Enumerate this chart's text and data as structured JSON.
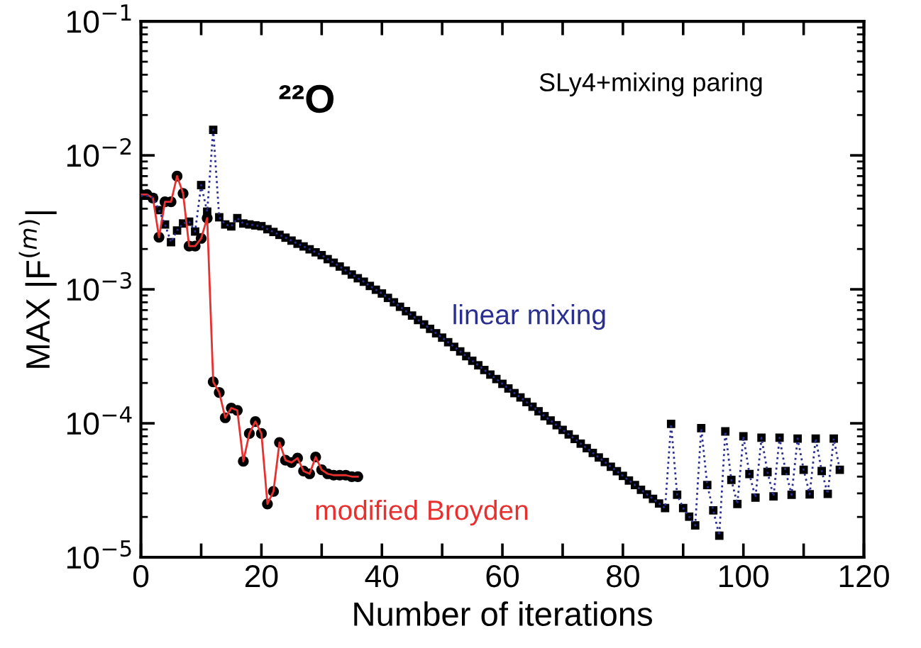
{
  "chart_data": {
    "type": "line",
    "xlabel": "Number of iterations",
    "ylabel": "MAX |F$^{(m)}$|",
    "log": "y",
    "grid": false,
    "xlim": [
      0,
      120
    ],
    "xticks": [
      0,
      {
        "value": 10,
        "label": null
      },
      20,
      {
        "value": 30,
        "label": null
      },
      40,
      {
        "value": 50,
        "label": null
      },
      60,
      {
        "value": 70,
        "label": null
      },
      80,
      {
        "value": 90,
        "label": null
      },
      100,
      {
        "value": 110,
        "label": null
      },
      120
    ],
    "ylim": [
      1e-05,
      0.1
    ],
    "yticks": [
      {
        "value": 1e-05,
        "label": "10$^{−5}$"
      },
      {
        "value": 0.0001,
        "label": "10$^{−4}$"
      },
      {
        "value": 0.001,
        "label": "10$^{−3}$"
      },
      {
        "value": 0.01,
        "label": "10$^{−2}$"
      },
      {
        "value": 0.1,
        "label": "10$^{−1}$"
      }
    ],
    "annotations": [
      "²²O",
      "SLy4+mixing paring"
    ],
    "series": [
      {
        "name": "linear mixing",
        "color": "#2b2f8f",
        "marker": "square",
        "line_style": "dotted",
        "x": [
          0,
          1,
          2,
          3,
          4,
          5,
          6,
          7,
          8,
          9,
          10,
          11,
          12,
          13,
          14,
          15,
          16,
          17,
          18,
          19,
          20,
          21,
          22,
          23,
          24,
          25,
          26,
          27,
          28,
          29,
          30,
          31,
          32,
          33,
          34,
          35,
          36,
          37,
          38,
          39,
          40,
          41,
          42,
          43,
          44,
          45,
          46,
          47,
          48,
          49,
          50,
          51,
          52,
          53,
          54,
          55,
          56,
          57,
          58,
          59,
          60,
          61,
          62,
          63,
          64,
          65,
          66,
          67,
          68,
          69,
          70,
          71,
          72,
          73,
          74,
          75,
          76,
          77,
          78,
          79,
          80,
          81,
          82,
          83,
          84,
          85,
          86,
          87,
          88,
          89,
          90,
          91,
          92,
          93,
          94,
          95,
          96,
          97,
          98,
          99,
          100,
          101,
          102,
          103,
          104,
          105,
          106,
          107,
          108,
          109,
          110,
          111,
          112,
          113,
          114,
          115,
          116
        ],
        "values": [
          0.005,
          0.005,
          0.0048,
          0.0039,
          0.00305,
          0.00225,
          0.00275,
          0.0031,
          0.0032,
          0.0027,
          0.006,
          0.0038,
          0.0155,
          0.00345,
          0.00305,
          0.00295,
          0.0034,
          0.0031,
          0.00305,
          0.003,
          0.00296,
          0.00281,
          0.00268,
          0.00255,
          0.00243,
          0.00231,
          0.00219,
          0.00209,
          0.00199,
          0.00189,
          0.0018,
          0.00168,
          0.00158,
          0.00148,
          0.00138,
          0.00129,
          0.00121,
          0.00114,
          0.00106,
          0.000993,
          0.000931,
          0.000863,
          0.0008,
          0.000741,
          0.000687,
          0.000637,
          0.00059,
          0.000547,
          0.000507,
          0.00047,
          0.000436,
          0.000403,
          0.000372,
          0.000344,
          0.000317,
          0.000293,
          0.000271,
          0.00025,
          0.000231,
          0.000214,
          0.000197,
          0.000182,
          0.000168,
          0.000156,
          0.000144,
          0.000133,
          0.000123,
          0.000113,
          0.000105,
          9.68e-05,
          8.93e-05,
          8.26e-05,
          7.64e-05,
          7.05e-05,
          6.52e-05,
          6.01e-05,
          5.56e-05,
          5.14e-05,
          4.74e-05,
          4.39e-05,
          4.05e-05,
          3.74e-05,
          3.46e-05,
          3.19e-05,
          2.95e-05,
          2.73e-05,
          2.52e-05,
          2.33e-05,
          9.9e-05,
          2.93e-05,
          2.33e-05,
          2.01e-05,
          1.73e-05,
          9.2e-05,
          3.46e-05,
          2.24e-05,
          1.45e-05,
          8.7e-05,
          3.78e-05,
          2.5e-05,
          8e-05,
          4.18e-05,
          2.79e-05,
          7.8e-05,
          4.33e-05,
          2.85e-05,
          7.8e-05,
          4.4e-05,
          2.93e-05,
          7.7e-05,
          4.5e-05,
          2.95e-05,
          7.7e-05,
          4.4e-05,
          2.97e-05,
          7.7e-05,
          4.5e-05
        ]
      },
      {
        "name": "modified Broyden",
        "color": "#e8312f",
        "marker": "circle",
        "line_style": "solid",
        "x": [
          0,
          1,
          2,
          3,
          4,
          5,
          6,
          7,
          8,
          9,
          10,
          11,
          12,
          13,
          14,
          15,
          16,
          17,
          18,
          19,
          20,
          21,
          22,
          23,
          24,
          25,
          26,
          27,
          28,
          29,
          30,
          31,
          32,
          33,
          34,
          35,
          36
        ],
        "values": [
          0.0051,
          0.0051,
          0.0048,
          0.00245,
          0.0045,
          0.0045,
          0.007,
          0.0052,
          0.0021,
          0.0021,
          0.0024,
          0.0034,
          0.000204,
          0.00017,
          0.00011,
          0.00013,
          0.000125,
          5.2e-05,
          8.4e-05,
          0.000103,
          8.4e-05,
          2.5e-05,
          3.1e-05,
          7.2e-05,
          5.3e-05,
          5.1e-05,
          5.5e-05,
          4.4e-05,
          4.2e-05,
          5.6e-05,
          4.5e-05,
          4.2e-05,
          4.1e-05,
          4.1e-05,
          4.1e-05,
          4e-05,
          4e-05
        ]
      }
    ]
  }
}
